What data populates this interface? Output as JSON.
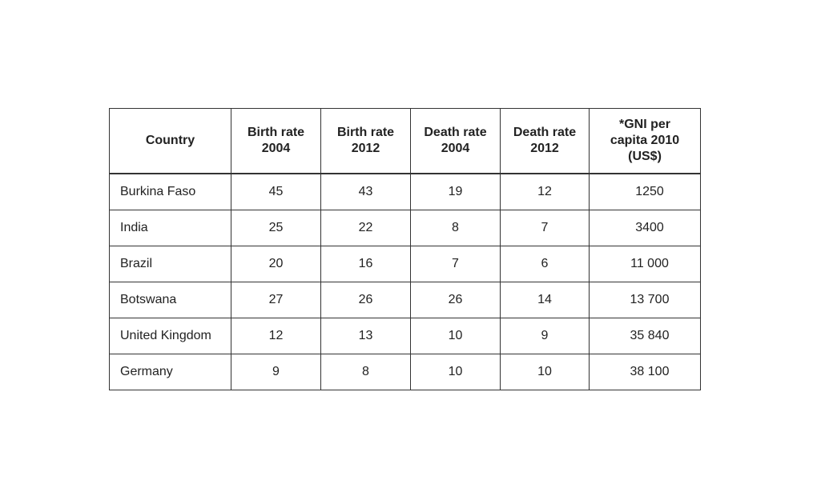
{
  "table": {
    "headers": [
      [
        "Country"
      ],
      [
        "Birth rate",
        "2004"
      ],
      [
        "Birth rate",
        "2012"
      ],
      [
        "Death rate",
        "2004"
      ],
      [
        "Death rate",
        "2012"
      ],
      [
        "*GNI per",
        "capita 2010",
        "(US$)"
      ]
    ],
    "rows": [
      [
        "Burkina Faso",
        "45",
        "43",
        "19",
        "12",
        "1250"
      ],
      [
        "India",
        "25",
        "22",
        "8",
        "7",
        "3400"
      ],
      [
        "Brazil",
        "20",
        "16",
        "7",
        "6",
        "11 000"
      ],
      [
        "Botswana",
        "27",
        "26",
        "26",
        "14",
        "13 700"
      ],
      [
        "United Kingdom",
        "12",
        "13",
        "10",
        "9",
        "35 840"
      ],
      [
        "Germany",
        "9",
        "8",
        "10",
        "10",
        "38 100"
      ]
    ]
  }
}
